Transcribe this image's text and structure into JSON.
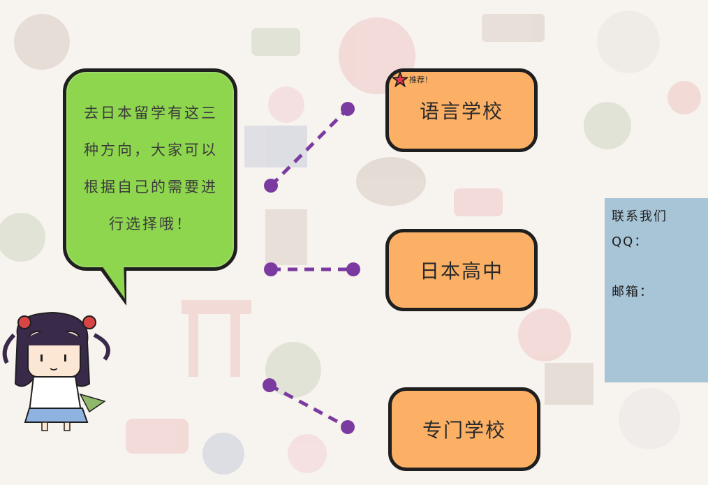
{
  "speech_bubble": {
    "lines": [
      "去日本留学有这三",
      "种方向，大家可以",
      "根据自己的需要进",
      "行选择哦！"
    ]
  },
  "options": [
    {
      "label": "语言学校",
      "badge": "推荐！"
    },
    {
      "label": "日本高中"
    },
    {
      "label": "专门学校"
    }
  ],
  "contact": {
    "title": "联系我们",
    "qq_label": "QQ：",
    "email_label": "邮箱："
  },
  "colors": {
    "bubble": "#8ed64e",
    "card": "#fbb065",
    "connector": "#7b3aa0",
    "contact_panel": "#96b9d2",
    "star": "#e8344a"
  }
}
